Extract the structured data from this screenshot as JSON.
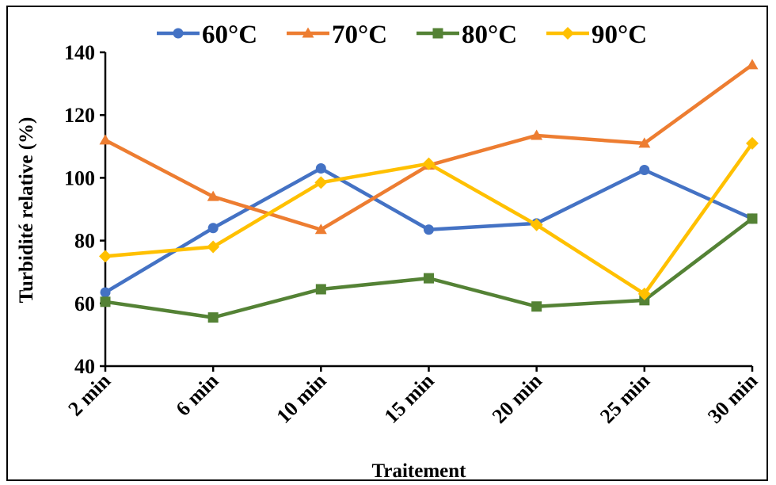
{
  "chart_data": {
    "type": "line",
    "title": "",
    "xlabel": "Traitement",
    "ylabel": "Turbidité relative (%)",
    "categories": [
      "2 min",
      "6 min",
      "10 min",
      "15 min",
      "20 min",
      "25 min",
      "30 min"
    ],
    "ylim": [
      40,
      140
    ],
    "yticks": [
      40,
      60,
      80,
      100,
      120,
      140
    ],
    "grid": false,
    "legend": "top",
    "series": [
      {
        "name": "60°C",
        "color": "#4472C4",
        "marker": "circle",
        "values": [
          63.5,
          84,
          103,
          83.5,
          85.5,
          102.5,
          87
        ]
      },
      {
        "name": "70°C",
        "color": "#ED7D31",
        "marker": "triangle",
        "values": [
          112,
          94,
          83.5,
          104,
          113.5,
          111,
          136
        ]
      },
      {
        "name": "80°C",
        "color": "#548235",
        "marker": "square",
        "values": [
          60.5,
          55.5,
          64.5,
          68,
          59,
          61,
          87
        ]
      },
      {
        "name": "90°C",
        "color": "#FFC000",
        "marker": "diamond",
        "values": [
          75,
          78,
          98.5,
          104.5,
          85,
          63,
          111
        ]
      }
    ]
  }
}
